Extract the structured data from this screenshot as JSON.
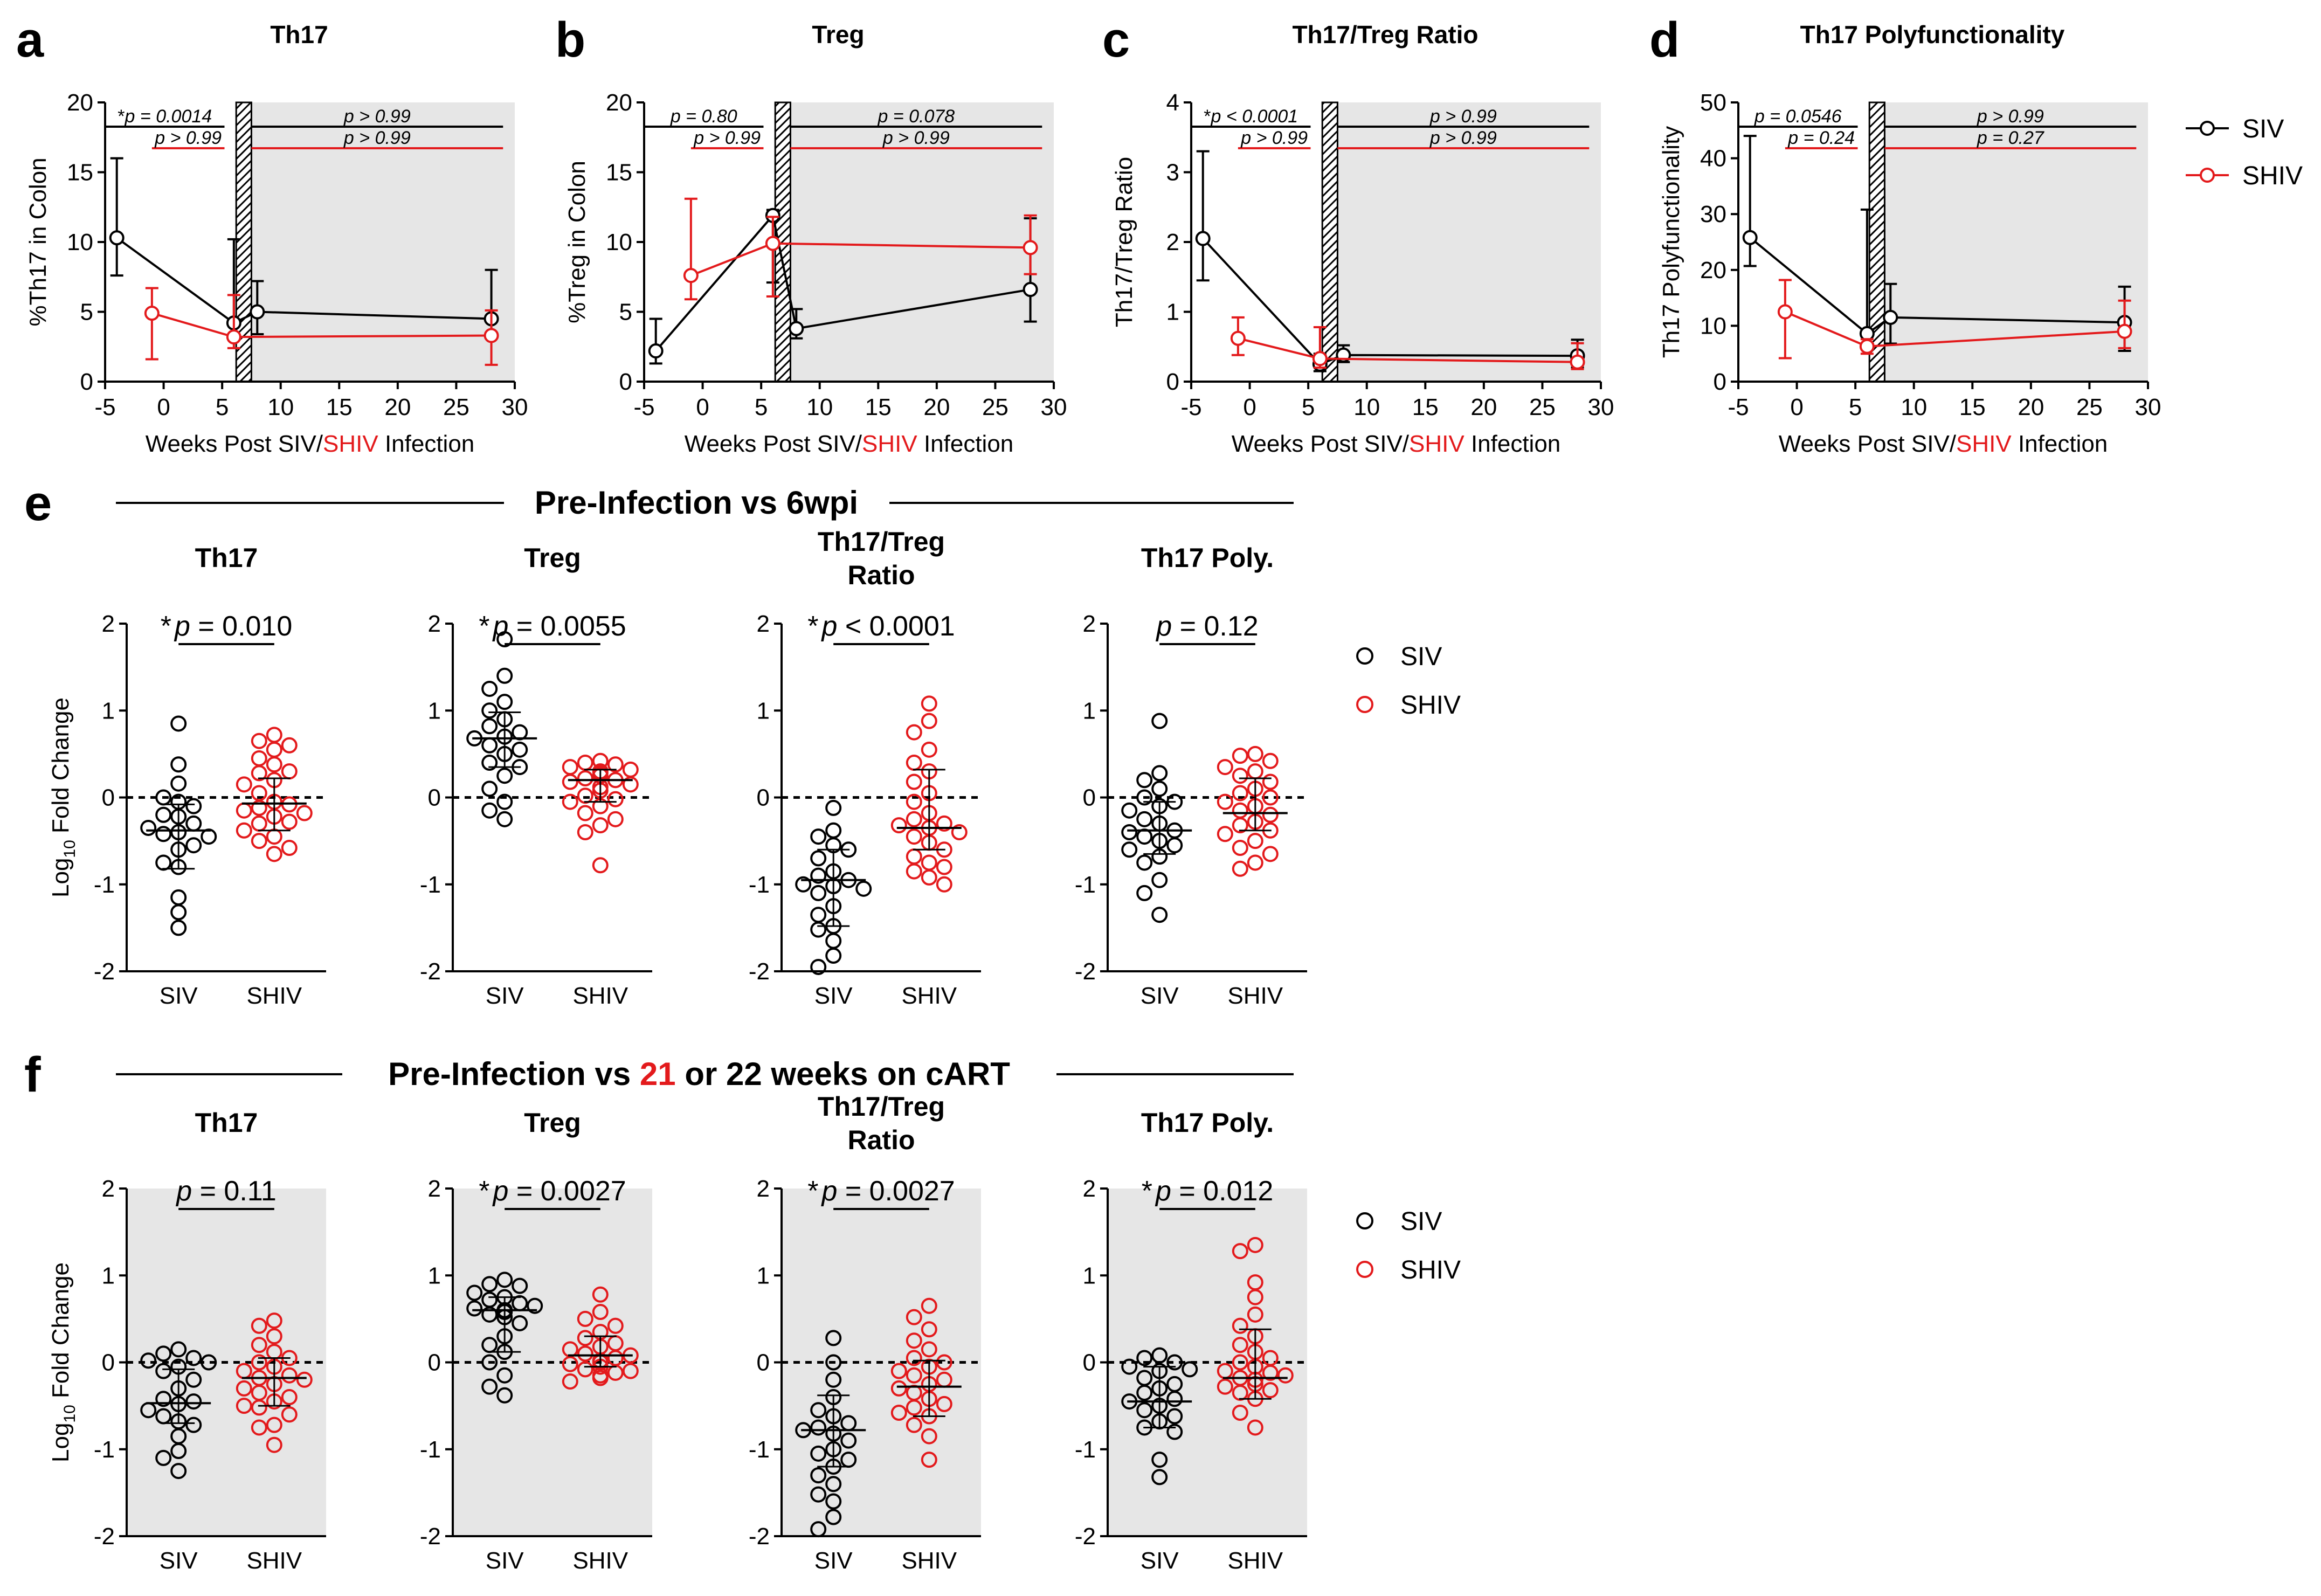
{
  "colors": {
    "siv": "#000000",
    "shiv": "#e31a1c",
    "shade": "#e6e6e6"
  },
  "legend": {
    "siv": "SIV",
    "shiv": "SHIV"
  },
  "shared": {
    "xlabel_pre": "Weeks Post SIV/",
    "xlabel_red": "SHIV",
    "xlabel_post": " Infection",
    "xticks": [
      -5,
      0,
      5,
      10,
      15,
      20,
      25,
      30
    ],
    "group_labels": [
      "SIV",
      "SHIV"
    ],
    "fold_ylabel_pre": "Log",
    "fold_ylabel_sub": "10",
    "fold_ylabel_post": " Fold Change",
    "fold_yticks": [
      -2,
      -1,
      0,
      1,
      2
    ]
  },
  "sections": {
    "e": {
      "letter": "e",
      "title": "Pre-Infection vs 6wpi"
    },
    "f": {
      "letter": "f",
      "title_pre": "Pre-Infection vs ",
      "title_red": "21",
      "title_post": " or 22 weeks on cART"
    }
  },
  "chart_data": [
    {
      "id": "a",
      "letter": "a",
      "type": "line",
      "title": "Th17",
      "ylabel": "%Th17  in Colon",
      "xlim": [
        -5,
        30
      ],
      "ylim": [
        0,
        20
      ],
      "yticks": [
        0,
        5,
        10,
        15,
        20
      ],
      "series": [
        {
          "name": "SIV",
          "x": [
            -4,
            6,
            8,
            28
          ],
          "y": [
            10.3,
            4.2,
            5.0,
            4.5
          ],
          "lo": [
            7.6,
            3.4,
            3.4,
            3.4
          ],
          "hi": [
            16.0,
            10.2,
            7.2,
            8.0
          ]
        },
        {
          "name": "SHIV",
          "x": [
            -1,
            6,
            28
          ],
          "y": [
            4.9,
            3.2,
            3.3
          ],
          "lo": [
            1.6,
            2.4,
            1.2
          ],
          "hi": [
            6.7,
            6.2,
            5.1
          ]
        }
      ],
      "pvalues": [
        {
          "text_star": "*",
          "text": "p = 0.0014",
          "x1": -5,
          "x2": 5.2,
          "color": "black",
          "row": 1
        },
        {
          "text_star": "",
          "text": "p > 0.99",
          "x1": -1,
          "x2": 5.2,
          "color": "red",
          "row": 2
        },
        {
          "text_star": "",
          "text": "p > 0.99",
          "x1": 7.5,
          "x2": 29,
          "color": "black",
          "row": 1
        },
        {
          "text_star": "",
          "text": "p > 0.99",
          "x1": 7.5,
          "x2": 29,
          "color": "red",
          "row": 2
        }
      ]
    },
    {
      "id": "b",
      "letter": "b",
      "type": "line",
      "title": "Treg",
      "ylabel": "%Treg  in Colon",
      "xlim": [
        -5,
        30
      ],
      "ylim": [
        0,
        20
      ],
      "yticks": [
        0,
        5,
        10,
        15,
        20
      ],
      "series": [
        {
          "name": "SIV",
          "x": [
            -4,
            6,
            8,
            28
          ],
          "y": [
            2.2,
            11.9,
            3.8,
            6.6
          ],
          "lo": [
            1.3,
            7.1,
            3.1,
            4.3
          ],
          "hi": [
            4.5,
            12.3,
            5.2,
            11.7
          ]
        },
        {
          "name": "SHIV",
          "x": [
            -1,
            6,
            28
          ],
          "y": [
            7.6,
            9.9,
            9.6
          ],
          "lo": [
            5.9,
            6.1,
            7.7
          ],
          "hi": [
            13.1,
            11.8,
            11.9
          ]
        }
      ],
      "pvalues": [
        {
          "text_star": "",
          "text": "p = 0.80",
          "x1": -5,
          "x2": 5.2,
          "color": "black",
          "row": 1
        },
        {
          "text_star": "",
          "text": "p > 0.99",
          "x1": -1,
          "x2": 5.2,
          "color": "red",
          "row": 2
        },
        {
          "text_star": "",
          "text": "p = 0.078",
          "x1": 7.5,
          "x2": 29,
          "color": "black",
          "row": 1
        },
        {
          "text_star": "",
          "text": "p > 0.99",
          "x1": 7.5,
          "x2": 29,
          "color": "red",
          "row": 2
        }
      ]
    },
    {
      "id": "c",
      "letter": "c",
      "type": "line",
      "title": "Th17/Treg Ratio",
      "ylabel": "Th17/Treg Ratio",
      "xlim": [
        -5,
        30
      ],
      "ylim": [
        0,
        4
      ],
      "yticks": [
        0,
        1,
        2,
        3,
        4
      ],
      "series": [
        {
          "name": "SIV",
          "x": [
            -4,
            6,
            8,
            28
          ],
          "y": [
            2.05,
            0.25,
            0.38,
            0.37
          ],
          "lo": [
            1.45,
            0.15,
            0.28,
            0.2
          ],
          "hi": [
            3.3,
            0.4,
            0.52,
            0.6
          ]
        },
        {
          "name": "SHIV",
          "x": [
            -1,
            6,
            28
          ],
          "y": [
            0.62,
            0.33,
            0.28
          ],
          "lo": [
            0.38,
            0.2,
            0.18
          ],
          "hi": [
            0.92,
            0.78,
            0.55
          ]
        }
      ],
      "pvalues": [
        {
          "text_star": "*",
          "text": "p < 0.0001",
          "x1": -5,
          "x2": 5.2,
          "color": "black",
          "row": 1
        },
        {
          "text_star": "",
          "text": "p > 0.99",
          "x1": -1,
          "x2": 5.2,
          "color": "red",
          "row": 2
        },
        {
          "text_star": "",
          "text": "p > 0.99",
          "x1": 7.5,
          "x2": 29,
          "color": "black",
          "row": 1
        },
        {
          "text_star": "",
          "text": "p > 0.99",
          "x1": 7.5,
          "x2": 29,
          "color": "red",
          "row": 2
        }
      ]
    },
    {
      "id": "d",
      "letter": "d",
      "type": "line",
      "title": "Th17 Polyfunctionality",
      "ylabel": "Th17 Polyfunctionality",
      "xlim": [
        -5,
        30
      ],
      "ylim": [
        0,
        50
      ],
      "yticks": [
        0,
        10,
        20,
        30,
        40,
        50
      ],
      "series": [
        {
          "name": "SIV",
          "x": [
            -4,
            6,
            8,
            28
          ],
          "y": [
            25.8,
            8.6,
            11.5,
            10.6
          ],
          "lo": [
            20.7,
            6.2,
            6.8,
            5.5
          ],
          "hi": [
            44.0,
            30.8,
            17.5,
            17.0
          ]
        },
        {
          "name": "SHIV",
          "x": [
            -1,
            6,
            28
          ],
          "y": [
            12.5,
            6.3,
            9.0
          ],
          "lo": [
            4.2,
            5.0,
            6.0
          ],
          "hi": [
            18.2,
            7.6,
            14.5
          ]
        }
      ],
      "pvalues": [
        {
          "text_star": "",
          "text": "p = 0.0546",
          "x1": -5,
          "x2": 5.2,
          "color": "black",
          "row": 1
        },
        {
          "text_star": "",
          "text": "p = 0.24",
          "x1": -1,
          "x2": 5.2,
          "color": "red",
          "row": 2
        },
        {
          "text_star": "",
          "text": "p > 0.99",
          "x1": 7.5,
          "x2": 29,
          "color": "black",
          "row": 1
        },
        {
          "text_star": "",
          "text": "p = 0.27",
          "x1": 7.5,
          "x2": 29,
          "color": "red",
          "row": 2
        }
      ]
    },
    {
      "id": "e1",
      "section": "e",
      "type": "scatter",
      "title": [
        "Th17"
      ],
      "pstar": "*",
      "ptext": "p = 0.010",
      "ylim": [
        -2,
        2
      ],
      "groups": [
        {
          "name": "SIV",
          "median": -0.38,
          "q1": -0.82,
          "q3": -0.08,
          "values": [
            0.85,
            0.38,
            0.16,
            0.0,
            -0.05,
            -0.1,
            -0.2,
            -0.22,
            -0.3,
            -0.35,
            -0.4,
            -0.42,
            -0.45,
            -0.55,
            -0.6,
            -0.75,
            -0.8,
            -1.15,
            -1.32,
            -1.5
          ]
        },
        {
          "name": "SHIV",
          "median": -0.07,
          "q1": -0.38,
          "q3": 0.22,
          "values": [
            0.72,
            0.65,
            0.6,
            0.55,
            0.45,
            0.38,
            0.3,
            0.28,
            0.2,
            0.15,
            0.05,
            -0.05,
            -0.08,
            -0.12,
            -0.15,
            -0.18,
            -0.22,
            -0.28,
            -0.3,
            -0.38,
            -0.45,
            -0.5,
            -0.58,
            -0.65
          ]
        }
      ]
    },
    {
      "id": "e2",
      "section": "e",
      "type": "scatter",
      "title": [
        "Treg"
      ],
      "pstar": "*",
      "ptext": "p = 0.0055",
      "ylim": [
        -2,
        2
      ],
      "groups": [
        {
          "name": "SIV",
          "median": 0.68,
          "q1": 0.35,
          "q3": 0.98,
          "values": [
            1.82,
            1.4,
            1.25,
            1.1,
            1.0,
            0.9,
            0.82,
            0.75,
            0.7,
            0.68,
            0.6,
            0.55,
            0.5,
            0.4,
            0.35,
            0.25,
            0.1,
            -0.05,
            -0.15,
            -0.25
          ]
        },
        {
          "name": "SHIV",
          "median": 0.2,
          "q1": -0.05,
          "q3": 0.32,
          "values": [
            0.42,
            0.4,
            0.38,
            0.35,
            0.32,
            0.3,
            0.28,
            0.25,
            0.22,
            0.2,
            0.18,
            0.15,
            0.12,
            0.08,
            0.02,
            -0.02,
            -0.05,
            -0.1,
            -0.18,
            -0.25,
            -0.32,
            -0.4,
            -0.78
          ]
        }
      ]
    },
    {
      "id": "e3",
      "section": "e",
      "type": "scatter",
      "title": [
        "Th17/Treg",
        "Ratio"
      ],
      "pstar": "*",
      "ptext": "p < 0.0001",
      "ylim": [
        -2,
        2
      ],
      "groups": [
        {
          "name": "SIV",
          "median": -0.95,
          "q1": -1.48,
          "q3": -0.6,
          "values": [
            -0.12,
            -0.38,
            -0.45,
            -0.55,
            -0.6,
            -0.7,
            -0.85,
            -0.9,
            -0.95,
            -1.0,
            -1.02,
            -1.05,
            -1.1,
            -1.25,
            -1.35,
            -1.48,
            -1.52,
            -1.65,
            -1.82,
            -1.95
          ]
        },
        {
          "name": "SHIV",
          "median": -0.35,
          "q1": -0.6,
          "q3": 0.32,
          "values": [
            1.08,
            0.88,
            0.75,
            0.55,
            0.4,
            0.3,
            0.18,
            0.05,
            -0.05,
            -0.18,
            -0.25,
            -0.3,
            -0.32,
            -0.35,
            -0.4,
            -0.45,
            -0.52,
            -0.6,
            -0.68,
            -0.75,
            -0.8,
            -0.85,
            -0.92,
            -1.0
          ]
        }
      ]
    },
    {
      "id": "e4",
      "section": "e",
      "type": "scatter",
      "title": [
        "Th17 Poly."
      ],
      "pstar": "",
      "ptext": "p = 0.12",
      "ylim": [
        -2,
        2
      ],
      "groups": [
        {
          "name": "SIV",
          "median": -0.38,
          "q1": -0.65,
          "q3": -0.05,
          "values": [
            0.88,
            0.28,
            0.2,
            0.1,
            0.0,
            -0.05,
            -0.1,
            -0.15,
            -0.25,
            -0.3,
            -0.38,
            -0.4,
            -0.45,
            -0.5,
            -0.55,
            -0.6,
            -0.68,
            -0.75,
            -0.95,
            -1.1,
            -1.35
          ]
        },
        {
          "name": "SHIV",
          "median": -0.18,
          "q1": -0.38,
          "q3": 0.22,
          "values": [
            0.5,
            0.48,
            0.42,
            0.35,
            0.3,
            0.25,
            0.18,
            0.1,
            0.05,
            0.0,
            -0.05,
            -0.1,
            -0.15,
            -0.2,
            -0.28,
            -0.32,
            -0.38,
            -0.42,
            -0.5,
            -0.58,
            -0.65,
            -0.75,
            -0.82
          ]
        }
      ]
    },
    {
      "id": "f1",
      "section": "f",
      "type": "scatter",
      "title": [
        "Th17"
      ],
      "pstar": "",
      "ptext": "p = 0.11",
      "ylim": [
        -2,
        2
      ],
      "groups": [
        {
          "name": "SIV",
          "median": -0.47,
          "q1": -0.7,
          "q3": -0.08,
          "values": [
            0.15,
            0.1,
            0.05,
            0.02,
            0.0,
            -0.05,
            -0.1,
            -0.2,
            -0.3,
            -0.42,
            -0.45,
            -0.48,
            -0.55,
            -0.62,
            -0.68,
            -0.72,
            -0.85,
            -1.02,
            -1.1,
            -1.25
          ]
        },
        {
          "name": "SHIV",
          "median": -0.18,
          "q1": -0.5,
          "q3": 0.05,
          "values": [
            0.48,
            0.42,
            0.3,
            0.2,
            0.12,
            0.05,
            0.0,
            -0.05,
            -0.1,
            -0.15,
            -0.18,
            -0.2,
            -0.25,
            -0.3,
            -0.35,
            -0.4,
            -0.45,
            -0.5,
            -0.52,
            -0.6,
            -0.72,
            -0.75,
            -0.95
          ]
        }
      ]
    },
    {
      "id": "f2",
      "section": "f",
      "type": "scatter",
      "title": [
        "Treg"
      ],
      "pstar": "*",
      "ptext": "p = 0.0027",
      "ylim": [
        -2,
        2
      ],
      "groups": [
        {
          "name": "SIV",
          "median": 0.6,
          "q1": 0.12,
          "q3": 0.75,
          "values": [
            0.95,
            0.9,
            0.88,
            0.8,
            0.75,
            0.72,
            0.68,
            0.65,
            0.62,
            0.6,
            0.58,
            0.55,
            0.52,
            0.45,
            0.3,
            0.2,
            0.12,
            0.0,
            -0.15,
            -0.28,
            -0.38
          ]
        },
        {
          "name": "SHIV",
          "median": 0.08,
          "q1": -0.05,
          "q3": 0.3,
          "values": [
            0.78,
            0.58,
            0.5,
            0.42,
            0.35,
            0.28,
            0.22,
            0.18,
            0.15,
            0.1,
            0.08,
            0.05,
            0.02,
            0.0,
            -0.02,
            -0.05,
            -0.08,
            -0.1,
            -0.12,
            -0.15,
            -0.18,
            -0.22
          ]
        }
      ]
    },
    {
      "id": "f3",
      "section": "f",
      "type": "scatter",
      "title": [
        "Th17/Treg",
        "Ratio"
      ],
      "pstar": "*",
      "ptext": "p = 0.0027",
      "ylim": [
        -2,
        2
      ],
      "groups": [
        {
          "name": "SIV",
          "median": -0.78,
          "q1": -1.2,
          "q3": -0.38,
          "values": [
            0.28,
            0.0,
            -0.2,
            -0.4,
            -0.55,
            -0.62,
            -0.7,
            -0.75,
            -0.78,
            -0.82,
            -0.9,
            -1.0,
            -1.05,
            -1.12,
            -1.2,
            -1.3,
            -1.4,
            -1.52,
            -1.6,
            -1.78,
            -1.92
          ]
        },
        {
          "name": "SHIV",
          "median": -0.28,
          "q1": -0.62,
          "q3": 0.02,
          "values": [
            0.65,
            0.52,
            0.38,
            0.25,
            0.15,
            0.05,
            0.0,
            -0.05,
            -0.1,
            -0.15,
            -0.2,
            -0.25,
            -0.3,
            -0.35,
            -0.42,
            -0.48,
            -0.52,
            -0.58,
            -0.62,
            -0.72,
            -0.85,
            -1.12
          ]
        }
      ]
    },
    {
      "id": "f4",
      "section": "f",
      "type": "scatter",
      "title": [
        "Th17 Poly."
      ],
      "pstar": "*",
      "ptext": "p = 0.012",
      "ylim": [
        -2,
        2
      ],
      "groups": [
        {
          "name": "SIV",
          "median": -0.45,
          "q1": -0.75,
          "q3": -0.05,
          "values": [
            0.08,
            0.05,
            0.0,
            -0.05,
            -0.08,
            -0.1,
            -0.18,
            -0.25,
            -0.3,
            -0.35,
            -0.42,
            -0.45,
            -0.5,
            -0.55,
            -0.62,
            -0.68,
            -0.75,
            -0.8,
            -1.12,
            -1.32
          ]
        },
        {
          "name": "SHIV",
          "median": -0.18,
          "q1": -0.42,
          "q3": 0.38,
          "values": [
            1.35,
            1.28,
            0.92,
            0.75,
            0.55,
            0.42,
            0.3,
            0.2,
            0.12,
            0.05,
            0.0,
            -0.05,
            -0.1,
            -0.12,
            -0.15,
            -0.18,
            -0.2,
            -0.25,
            -0.28,
            -0.32,
            -0.35,
            -0.42,
            -0.58,
            -0.75
          ]
        }
      ]
    }
  ]
}
